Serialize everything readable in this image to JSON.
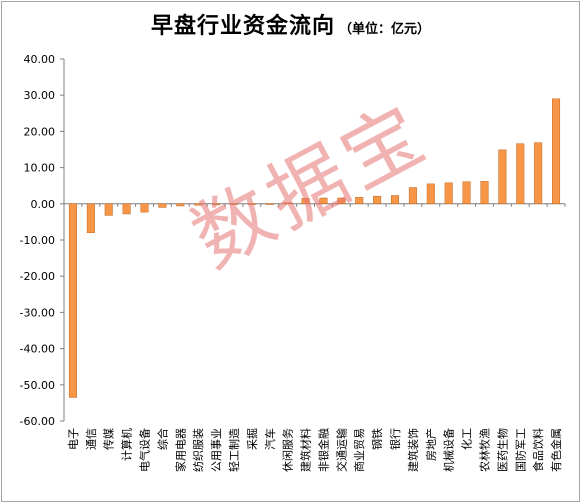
{
  "title": "早盘行业资金流向",
  "subtitle": "（单位：亿元）",
  "watermark": "数据宝",
  "chart_data": {
    "type": "bar",
    "ylim": [
      -60,
      40
    ],
    "yticks": [
      "40.00",
      "30.00",
      "20.00",
      "10.00",
      "0.00",
      "-10.00",
      "-20.00",
      "-30.00",
      "-40.00",
      "-50.00",
      "-60.00"
    ],
    "ytick_values": [
      40,
      30,
      20,
      10,
      0,
      -10,
      -20,
      -30,
      -40,
      -50,
      -60
    ],
    "categories": [
      "电子",
      "通信",
      "传媒",
      "计算机",
      "电气设备",
      "综合",
      "家用电器",
      "纺织服装",
      "公用事业",
      "轻工制造",
      "采掘",
      "汽车",
      "休闲服务",
      "建筑材料",
      "非银金融",
      "交通运输",
      "商业贸易",
      "钢铁",
      "银行",
      "建筑装饰",
      "房地产",
      "机械设备",
      "化工",
      "农林牧渔",
      "医药生物",
      "国防军工",
      "食品饮料",
      "有色金属"
    ],
    "values": [
      -53.5,
      -8.0,
      -3.2,
      -2.8,
      -2.3,
      -1.0,
      -0.6,
      -0.4,
      -0.3,
      -0.2,
      -0.1,
      -0.2,
      0.3,
      1.5,
      1.6,
      1.6,
      1.8,
      2.1,
      2.3,
      4.5,
      5.5,
      5.8,
      6.1,
      6.2,
      14.9,
      16.6,
      16.9,
      29.0
    ],
    "bar_color": "#f79646",
    "grid": false
  }
}
